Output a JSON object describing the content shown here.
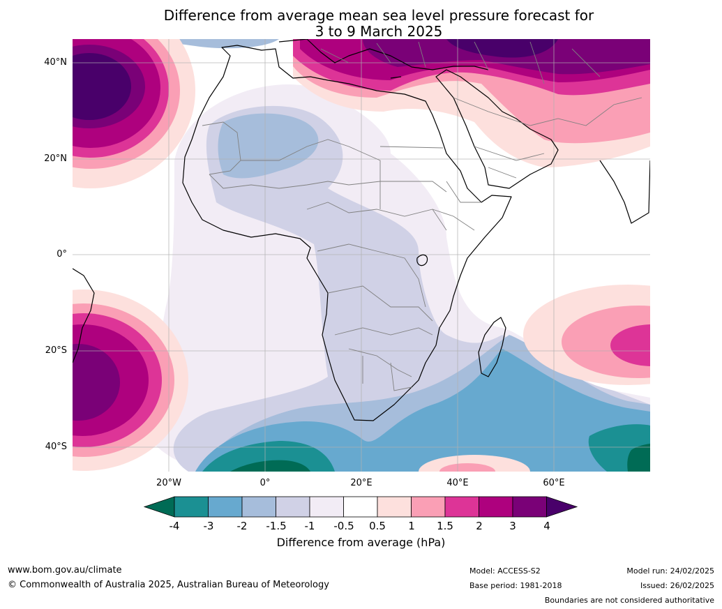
{
  "title_line1": "Difference from average mean sea level pressure forecast for",
  "title_line2": "3 to 9 March 2025",
  "lat_labels": [
    "40°N",
    "20°N",
    "0°",
    "20°S",
    "40°S"
  ],
  "lon_labels": [
    "20°W",
    "0°",
    "20°E",
    "40°E",
    "60°E"
  ],
  "colorbar": {
    "ticks": [
      "-4",
      "-3",
      "-2",
      "-1.5",
      "-1",
      "-0.5",
      "0.5",
      "1",
      "1.5",
      "2",
      "3",
      "4"
    ],
    "colors": [
      "#006b55",
      "#1b9093",
      "#67a9cf",
      "#a6bddb",
      "#d0d1e6",
      "#f2ecf5",
      "#ffffff",
      "#fde0dd",
      "#fa9fb5",
      "#dd3497",
      "#ae017e",
      "#7a0177",
      "#49006a"
    ],
    "title": "Difference from average (hPa)"
  },
  "footer": {
    "url": "www.bom.gov.au/climate",
    "copyright": "© Commonwealth of Australia 2025, Australian Bureau of Meteorology",
    "model": "Model: ACCESS-S2",
    "base_period": "Base period: 1981-2018",
    "model_run": "Model run: 24/02/2025",
    "issued": "Issued: 26/02/2025",
    "disclaimer": "Boundaries are not considered authoritative"
  }
}
